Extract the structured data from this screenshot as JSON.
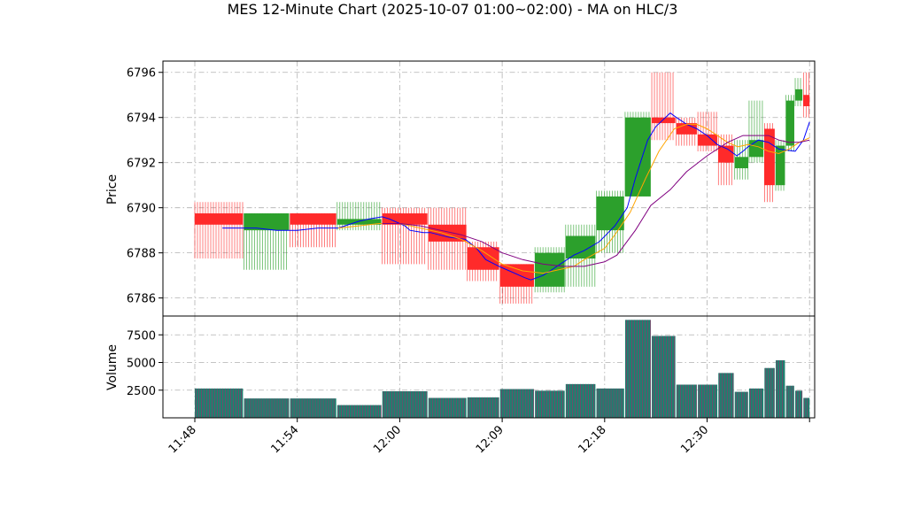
{
  "chart_data": {
    "type": "candlestick",
    "title": "MES 12-Minute Chart (2025-10-07 01:00~02:00) - MA on HLC/3",
    "price_panel": {
      "ylabel": "Price",
      "ylim": [
        6785.2,
        6796.5
      ],
      "yticks": [
        6786,
        6788,
        6790,
        6792,
        6794,
        6796
      ],
      "grid": true
    },
    "volume_panel": {
      "ylabel": "Volume",
      "ylim": [
        0,
        9200
      ],
      "yticks": [
        2500,
        5000,
        7500
      ],
      "ytick_labels": [
        "2500",
        "5000",
        "7500"
      ],
      "grid": true
    },
    "xlim": [
      0,
      60.5
    ],
    "xticks": [
      0,
      10,
      20,
      30,
      40,
      50,
      60
    ],
    "xtick_labels": [
      "11:48",
      "11:54",
      "12:00",
      "12:09",
      "12:18",
      "12:30",
      ""
    ],
    "colors": {
      "up": "#2ca02c",
      "down": "#ff2a2a",
      "ma1": "#0000ff",
      "ma2": "#ffa500",
      "ma3": "#800080",
      "volume_up": "#1f7f6f",
      "volume_down": "#8a3a6a"
    },
    "bars": [
      {
        "x0": 0,
        "x1": 4.7,
        "open": 6789.75,
        "high": 6790.25,
        "low": 6787.75,
        "close": 6789.25,
        "volume": 2650
      },
      {
        "x0": 4.8,
        "x1": 9.2,
        "open": 6789.0,
        "high": 6789.75,
        "low": 6787.25,
        "close": 6789.75,
        "volume": 1750
      },
      {
        "x0": 9.3,
        "x1": 13.8,
        "open": 6789.75,
        "high": 6789.75,
        "low": 6788.25,
        "close": 6789.25,
        "volume": 1750
      },
      {
        "x0": 13.9,
        "x1": 18.2,
        "open": 6789.25,
        "high": 6790.25,
        "low": 6789.0,
        "close": 6789.5,
        "volume": 1150
      },
      {
        "x0": 18.3,
        "x1": 22.7,
        "open": 6789.75,
        "high": 6790.0,
        "low": 6787.5,
        "close": 6789.25,
        "volume": 2400
      },
      {
        "x0": 22.8,
        "x1": 26.5,
        "open": 6789.25,
        "high": 6790.0,
        "low": 6787.25,
        "close": 6788.5,
        "volume": 1800
      },
      {
        "x0": 26.6,
        "x1": 29.7,
        "open": 6788.25,
        "high": 6788.5,
        "low": 6786.75,
        "close": 6787.25,
        "volume": 1850
      },
      {
        "x0": 29.8,
        "x1": 33.1,
        "open": 6787.5,
        "high": 6787.5,
        "low": 6785.75,
        "close": 6786.5,
        "volume": 2600
      },
      {
        "x0": 33.2,
        "x1": 36.1,
        "open": 6786.5,
        "high": 6788.25,
        "low": 6786.25,
        "close": 6788.0,
        "volume": 2450
      },
      {
        "x0": 36.2,
        "x1": 39.1,
        "open": 6787.75,
        "high": 6789.25,
        "low": 6786.5,
        "close": 6788.75,
        "volume": 3050
      },
      {
        "x0": 39.2,
        "x1": 41.9,
        "open": 6789.0,
        "high": 6790.75,
        "low": 6788.0,
        "close": 6790.5,
        "volume": 2650
      },
      {
        "x0": 42.0,
        "x1": 44.5,
        "open": 6790.5,
        "high": 6794.25,
        "low": 6790.5,
        "close": 6794.0,
        "volume": 8850
      },
      {
        "x0": 44.6,
        "x1": 46.9,
        "open": 6794.0,
        "high": 6796.0,
        "low": 6793.0,
        "close": 6793.75,
        "volume": 7400
      },
      {
        "x0": 47.0,
        "x1": 49.0,
        "open": 6793.75,
        "high": 6794.0,
        "low": 6792.75,
        "close": 6793.25,
        "volume": 3000
      },
      {
        "x0": 49.1,
        "x1": 51.0,
        "open": 6793.25,
        "high": 6794.25,
        "low": 6792.5,
        "close": 6792.75,
        "volume": 3000
      },
      {
        "x0": 51.1,
        "x1": 52.6,
        "open": 6792.75,
        "high": 6793.25,
        "low": 6791.0,
        "close": 6792.0,
        "volume": 4050
      },
      {
        "x0": 52.7,
        "x1": 54.0,
        "open": 6791.75,
        "high": 6793.0,
        "low": 6791.25,
        "close": 6792.25,
        "volume": 2350
      },
      {
        "x0": 54.1,
        "x1": 55.5,
        "open": 6792.25,
        "high": 6794.75,
        "low": 6792.0,
        "close": 6793.0,
        "volume": 2650
      },
      {
        "x0": 55.6,
        "x1": 56.6,
        "open": 6793.5,
        "high": 6793.75,
        "low": 6790.25,
        "close": 6791.0,
        "volume": 4500
      },
      {
        "x0": 56.7,
        "x1": 57.6,
        "open": 6791.0,
        "high": 6793.0,
        "low": 6790.75,
        "close": 6792.75,
        "volume": 5200
      },
      {
        "x0": 57.7,
        "x1": 58.5,
        "open": 6792.75,
        "high": 6795.0,
        "low": 6792.5,
        "close": 6794.75,
        "volume": 2900
      },
      {
        "x0": 58.6,
        "x1": 59.3,
        "open": 6794.75,
        "high": 6795.75,
        "low": 6794.5,
        "close": 6795.25,
        "volume": 2450
      },
      {
        "x0": 59.4,
        "x1": 60.0,
        "open": 6795.0,
        "high": 6796.0,
        "low": 6794.0,
        "close": 6794.5,
        "volume": 1800
      }
    ],
    "ma_series": [
      {
        "color": "#0000ff",
        "points": [
          [
            2.7,
            6789.1
          ],
          [
            6,
            6789.1
          ],
          [
            8,
            6789.0
          ],
          [
            10,
            6789.0
          ],
          [
            12,
            6789.1
          ],
          [
            14,
            6789.1
          ],
          [
            16,
            6789.4
          ],
          [
            17,
            6789.5
          ],
          [
            18.3,
            6789.6
          ],
          [
            19,
            6789.5
          ],
          [
            20.5,
            6789.2
          ],
          [
            21,
            6789.0
          ],
          [
            22.3,
            6788.9
          ],
          [
            23,
            6788.9
          ],
          [
            24.7,
            6788.7
          ],
          [
            26.4,
            6788.6
          ],
          [
            27.5,
            6788.2
          ],
          [
            28.4,
            6787.7
          ],
          [
            29.7,
            6787.4
          ],
          [
            30.7,
            6787.2
          ],
          [
            32.2,
            6786.9
          ],
          [
            32.8,
            6786.8
          ],
          [
            34,
            6787.0
          ],
          [
            35,
            6787.3
          ],
          [
            36,
            6787.6
          ],
          [
            37,
            6787.9
          ],
          [
            38,
            6788.1
          ],
          [
            39.5,
            6788.5
          ],
          [
            41,
            6789.2
          ],
          [
            42.2,
            6790.0
          ],
          [
            43,
            6791.3
          ],
          [
            44.2,
            6793.0
          ],
          [
            45,
            6793.6
          ],
          [
            46.4,
            6794.2
          ],
          [
            47,
            6794.0
          ],
          [
            48,
            6793.7
          ],
          [
            49,
            6793.5
          ],
          [
            50,
            6793.2
          ],
          [
            51,
            6792.8
          ],
          [
            52,
            6792.6
          ],
          [
            52.9,
            6792.3
          ],
          [
            53.5,
            6792.5
          ],
          [
            54,
            6792.7
          ],
          [
            55,
            6793.0
          ],
          [
            56,
            6792.9
          ],
          [
            57,
            6792.6
          ],
          [
            58.6,
            6792.5
          ],
          [
            59.4,
            6793.0
          ],
          [
            60,
            6793.8
          ]
        ]
      },
      {
        "color": "#ffa500",
        "points": [
          [
            14,
            6789.1
          ],
          [
            16,
            6789.2
          ],
          [
            18,
            6789.3
          ],
          [
            20,
            6789.3
          ],
          [
            22,
            6789.1
          ],
          [
            24,
            6788.9
          ],
          [
            26,
            6788.6
          ],
          [
            28,
            6788.1
          ],
          [
            30,
            6787.5
          ],
          [
            32,
            6787.2
          ],
          [
            34,
            6787.1
          ],
          [
            36,
            6787.3
          ],
          [
            37,
            6787.4
          ],
          [
            38,
            6787.7
          ],
          [
            40,
            6788.2
          ],
          [
            41,
            6788.8
          ],
          [
            42.5,
            6789.8
          ],
          [
            44,
            6791.3
          ],
          [
            45.3,
            6792.5
          ],
          [
            46.8,
            6793.5
          ],
          [
            48,
            6793.7
          ],
          [
            49,
            6793.7
          ],
          [
            50,
            6793.5
          ],
          [
            51,
            6793.2
          ],
          [
            52,
            6792.9
          ],
          [
            53,
            6792.7
          ],
          [
            54,
            6792.8
          ],
          [
            55,
            6792.7
          ],
          [
            56,
            6792.5
          ],
          [
            57,
            6792.4
          ],
          [
            58,
            6792.6
          ],
          [
            59,
            6792.9
          ],
          [
            60,
            6793.1
          ]
        ]
      },
      {
        "color": "#800080",
        "points": [
          [
            18.3,
            6789.3
          ],
          [
            20,
            6789.3
          ],
          [
            22,
            6789.2
          ],
          [
            24,
            6789.0
          ],
          [
            26,
            6788.8
          ],
          [
            28,
            6788.5
          ],
          [
            30,
            6788.0
          ],
          [
            32,
            6787.7
          ],
          [
            34,
            6787.5
          ],
          [
            36,
            6787.4
          ],
          [
            38,
            6787.4
          ],
          [
            40,
            6787.6
          ],
          [
            41.2,
            6787.9
          ],
          [
            43,
            6789.0
          ],
          [
            44.5,
            6790.1
          ],
          [
            46.4,
            6790.8
          ],
          [
            48,
            6791.6
          ],
          [
            50,
            6792.3
          ],
          [
            52,
            6792.9
          ],
          [
            53.5,
            6793.2
          ],
          [
            55,
            6793.2
          ],
          [
            56,
            6793.2
          ],
          [
            57,
            6793.0
          ],
          [
            58,
            6792.9
          ],
          [
            59,
            6792.9
          ],
          [
            60,
            6793.0
          ]
        ]
      }
    ]
  }
}
